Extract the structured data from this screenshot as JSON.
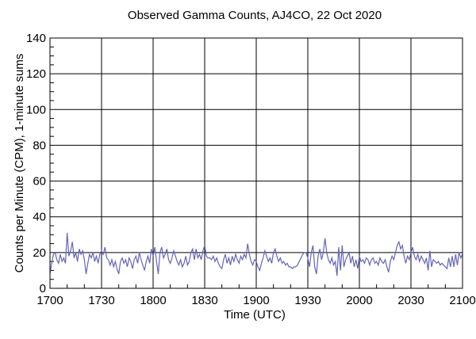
{
  "chart_data": {
    "type": "line",
    "title": "Observed Gamma Counts, AJ4CO, 22 Oct 2020",
    "xlabel": "Time (UTC)",
    "ylabel": "Counts per Minute (CPM), 1-minute sums",
    "x_unit": "minutes since 1700 UTC",
    "x_range": [
      0,
      240
    ],
    "x_ticks": [
      {
        "pos": 0,
        "label": "1700"
      },
      {
        "pos": 30,
        "label": "1730"
      },
      {
        "pos": 60,
        "label": "1800"
      },
      {
        "pos": 90,
        "label": "1830"
      },
      {
        "pos": 120,
        "label": "1900"
      },
      {
        "pos": 150,
        "label": "1930"
      },
      {
        "pos": 180,
        "label": "2000"
      },
      {
        "pos": 210,
        "label": "2030"
      },
      {
        "pos": 240,
        "label": "2100"
      }
    ],
    "x_minor_step": 10,
    "ylim": [
      0,
      140
    ],
    "y_tick_step": 20,
    "y_minor_step": 5,
    "grid": true,
    "grid_color": "#000000",
    "axis_color": "#000000",
    "line_color": "#6464b9",
    "background": "#ffffff",
    "sample_interval_min": 1,
    "values": [
      8,
      14,
      19,
      20,
      16,
      14,
      19,
      15,
      17,
      14,
      31,
      18,
      21,
      26,
      17,
      20,
      15,
      22,
      19,
      21,
      16,
      8,
      14,
      19,
      17,
      20,
      15,
      18,
      14,
      19,
      21,
      19,
      23,
      17,
      16,
      13,
      16,
      12,
      15,
      11,
      8,
      15,
      17,
      14,
      16,
      12,
      17,
      15,
      11,
      16,
      18,
      14,
      20,
      16,
      13,
      10,
      15,
      18,
      14,
      22,
      18,
      23,
      15,
      8,
      20,
      23,
      17,
      19,
      22,
      16,
      14,
      17,
      21,
      18,
      15,
      13,
      16,
      12,
      14,
      18,
      13,
      15,
      20,
      22,
      16,
      22,
      17,
      19,
      16,
      21,
      24,
      18,
      17,
      17,
      16,
      18,
      15,
      17,
      14,
      12,
      11,
      16,
      19,
      14,
      17,
      13,
      18,
      15,
      19,
      16,
      14,
      18,
      16,
      19,
      17,
      25,
      19,
      15,
      13,
      16,
      15,
      12,
      10,
      14,
      17,
      21,
      18,
      15,
      17,
      14,
      20,
      22,
      18,
      15,
      17,
      14,
      15,
      13,
      14,
      12,
      12,
      11,
      12,
      12,
      13,
      15,
      17,
      19,
      20,
      20,
      17,
      12,
      20,
      24,
      12,
      8,
      18,
      22,
      16,
      20,
      28,
      20,
      16,
      14,
      17,
      13,
      15,
      7,
      23,
      10,
      24,
      12,
      16,
      18,
      20,
      14,
      18,
      12,
      16,
      11,
      18,
      15,
      16,
      14,
      17,
      16,
      13,
      16,
      17,
      14,
      15,
      13,
      17,
      15,
      14,
      16,
      12,
      9,
      15,
      18,
      16,
      20,
      24,
      26,
      22,
      24,
      18,
      14,
      18,
      16,
      20,
      23,
      18,
      16,
      19,
      15,
      18,
      16,
      14,
      17,
      10,
      21,
      12,
      16,
      15,
      14,
      15,
      13,
      14,
      13,
      12,
      11,
      17,
      12,
      18,
      12,
      19,
      13,
      20,
      17,
      19
    ]
  }
}
